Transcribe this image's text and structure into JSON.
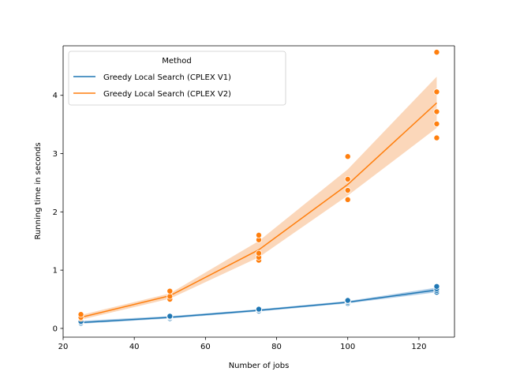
{
  "chart_data": {
    "type": "line",
    "xlabel": "Number of jobs",
    "ylabel": "Running time in seconds",
    "xlim": [
      20,
      130
    ],
    "ylim": [
      -0.15,
      4.85
    ],
    "xticks": [
      20,
      40,
      60,
      80,
      100,
      120
    ],
    "yticks": [
      0,
      1,
      2,
      3,
      4
    ],
    "legend": {
      "title": "Method",
      "placement": "top-left"
    },
    "series": [
      {
        "name": "Greedy Local Search (CPLEX V1)",
        "color": "#1f77b4",
        "band_color": "#a9c9e4",
        "line": {
          "x": [
            25,
            50,
            75,
            100,
            125
          ],
          "y": [
            0.1,
            0.19,
            0.31,
            0.45,
            0.66
          ],
          "band_low": [
            0.08,
            0.17,
            0.29,
            0.43,
            0.62
          ],
          "band_high": [
            0.13,
            0.21,
            0.33,
            0.47,
            0.7
          ]
        },
        "points": [
          {
            "x": 25,
            "y": 0.09
          },
          {
            "x": 25,
            "y": 0.11
          },
          {
            "x": 25,
            "y": 0.12
          },
          {
            "x": 50,
            "y": 0.17
          },
          {
            "x": 50,
            "y": 0.19
          },
          {
            "x": 50,
            "y": 0.2
          },
          {
            "x": 50,
            "y": 0.21
          },
          {
            "x": 75,
            "y": 0.29
          },
          {
            "x": 75,
            "y": 0.3
          },
          {
            "x": 75,
            "y": 0.32
          },
          {
            "x": 75,
            "y": 0.33
          },
          {
            "x": 100,
            "y": 0.43
          },
          {
            "x": 100,
            "y": 0.45
          },
          {
            "x": 100,
            "y": 0.47
          },
          {
            "x": 100,
            "y": 0.48
          },
          {
            "x": 125,
            "y": 0.62
          },
          {
            "x": 125,
            "y": 0.65
          },
          {
            "x": 125,
            "y": 0.68
          },
          {
            "x": 125,
            "y": 0.72
          }
        ]
      },
      {
        "name": "Greedy Local Search (CPLEX V2)",
        "color": "#ff7f0e",
        "band_color": "#fbd3b3",
        "line": {
          "x": [
            25,
            50,
            75,
            100,
            125
          ],
          "y": [
            0.19,
            0.56,
            1.35,
            2.47,
            3.87
          ],
          "band_low": [
            0.15,
            0.51,
            1.22,
            2.28,
            3.44
          ],
          "band_high": [
            0.23,
            0.6,
            1.5,
            2.73,
            4.32
          ]
        },
        "points": [
          {
            "x": 25,
            "y": 0.17
          },
          {
            "x": 25,
            "y": 0.19
          },
          {
            "x": 25,
            "y": 0.24
          },
          {
            "x": 50,
            "y": 0.5
          },
          {
            "x": 50,
            "y": 0.55
          },
          {
            "x": 50,
            "y": 0.64
          },
          {
            "x": 75,
            "y": 1.17
          },
          {
            "x": 75,
            "y": 1.22
          },
          {
            "x": 75,
            "y": 1.29
          },
          {
            "x": 75,
            "y": 1.52
          },
          {
            "x": 75,
            "y": 1.6
          },
          {
            "x": 100,
            "y": 2.21
          },
          {
            "x": 100,
            "y": 2.37
          },
          {
            "x": 100,
            "y": 2.56
          },
          {
            "x": 100,
            "y": 2.95
          },
          {
            "x": 125,
            "y": 3.27
          },
          {
            "x": 125,
            "y": 3.51
          },
          {
            "x": 125,
            "y": 3.72
          },
          {
            "x": 125,
            "y": 4.06
          },
          {
            "x": 125,
            "y": 4.74
          }
        ]
      }
    ]
  }
}
